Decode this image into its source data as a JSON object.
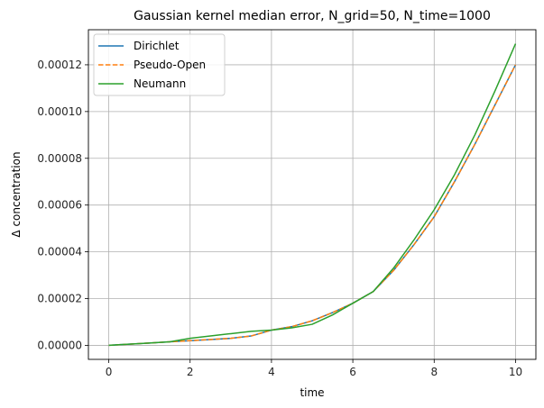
{
  "chart_data": {
    "type": "line",
    "title": "Gaussian kernel median error, N_grid=50, N_time=1000",
    "xlabel": "time",
    "ylabel": "Δ concentration",
    "xlim": [
      -0.5,
      10.5
    ],
    "ylim": [
      -6e-06,
      0.000135
    ],
    "xticks": [
      0,
      2,
      4,
      6,
      8,
      10
    ],
    "xtick_labels": [
      "0",
      "2",
      "4",
      "6",
      "8",
      "10"
    ],
    "yticks": [
      0,
      2e-05,
      4e-05,
      6e-05,
      8e-05,
      0.0001,
      0.00012
    ],
    "ytick_labels": [
      "0.00000",
      "0.00002",
      "0.00004",
      "0.00006",
      "0.00008",
      "0.00010",
      "0.00012"
    ],
    "grid": true,
    "legend_position": "top-left",
    "x": [
      0,
      0.5,
      1,
      1.5,
      2,
      2.5,
      3,
      3.5,
      4,
      4.5,
      5,
      5.5,
      6,
      6.5,
      7,
      7.5,
      8,
      8.5,
      9,
      9.5,
      10
    ],
    "series": [
      {
        "name": "Dirichlet",
        "color": "#1f77b4",
        "dash": "solid",
        "values": [
          0,
          5e-07,
          1e-06,
          1.5e-06,
          2e-06,
          2.5e-06,
          3e-06,
          4e-06,
          6.5e-06,
          8e-06,
          1.05e-05,
          1.4e-05,
          1.8e-05,
          2.3e-05,
          3.2e-05,
          4.3e-05,
          5.5e-05,
          7e-05,
          8.6e-05,
          0.000103,
          0.00012
        ]
      },
      {
        "name": "Pseudo-Open",
        "color": "#ff7f0e",
        "dash": "dashed",
        "values": [
          0,
          5e-07,
          1e-06,
          1.5e-06,
          2e-06,
          2.5e-06,
          3e-06,
          4e-06,
          6.5e-06,
          8e-06,
          1.05e-05,
          1.4e-05,
          1.8e-05,
          2.3e-05,
          3.2e-05,
          4.3e-05,
          5.5e-05,
          7e-05,
          8.6e-05,
          0.000103,
          0.00012
        ]
      },
      {
        "name": "Neumann",
        "color": "#2ca02c",
        "dash": "solid",
        "values": [
          0,
          5e-07,
          1e-06,
          1.5e-06,
          3e-06,
          4e-06,
          5e-06,
          6e-06,
          6.5e-06,
          7.5e-06,
          9e-06,
          1.3e-05,
          1.8e-05,
          2.3e-05,
          3.3e-05,
          4.5e-05,
          5.8e-05,
          7.3e-05,
          9e-05,
          0.000109,
          0.000129
        ]
      }
    ]
  }
}
